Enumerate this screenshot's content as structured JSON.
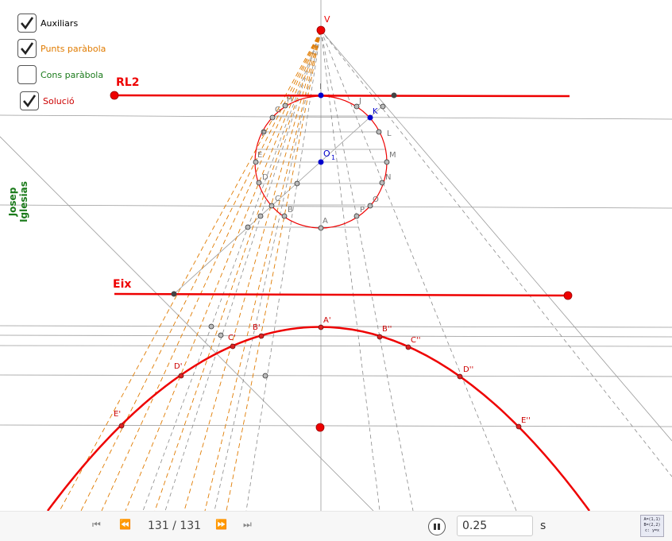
{
  "checkboxes": [
    {
      "label": "Auxiliars",
      "checked": true,
      "color": "#000000"
    },
    {
      "label": "Punts paràbola",
      "checked": true,
      "color": "#e07b00"
    },
    {
      "label": "Cons paràbola",
      "checked": false,
      "color": "#1a7a1a"
    },
    {
      "label": "Solució",
      "checked": true,
      "color": "#cc0000"
    }
  ],
  "author": "Josep Iglesias",
  "labels": {
    "vertex": "V",
    "rl2": "RL2",
    "eix": "Eix",
    "center": "O",
    "center_sub": "1",
    "circle_points": [
      "A",
      "B",
      "C",
      "D",
      "E",
      "F",
      "G",
      "H",
      "I",
      "J",
      "K",
      "L",
      "M",
      "N",
      "O",
      "P"
    ],
    "parabola_points": [
      "A'",
      "B'",
      "C'",
      "D'",
      "E'",
      "B''",
      "C''",
      "D''",
      "E''"
    ]
  },
  "player": {
    "frame": "131 / 131",
    "speed": "0.25",
    "unit": "s"
  },
  "algebra_icon": [
    "A=(1,1)",
    "B=(2,2)",
    "c: y=x"
  ],
  "colors": {
    "red": "#ee0000",
    "blue": "#0000cc",
    "orange": "#e07b00",
    "gray": "#888888"
  }
}
